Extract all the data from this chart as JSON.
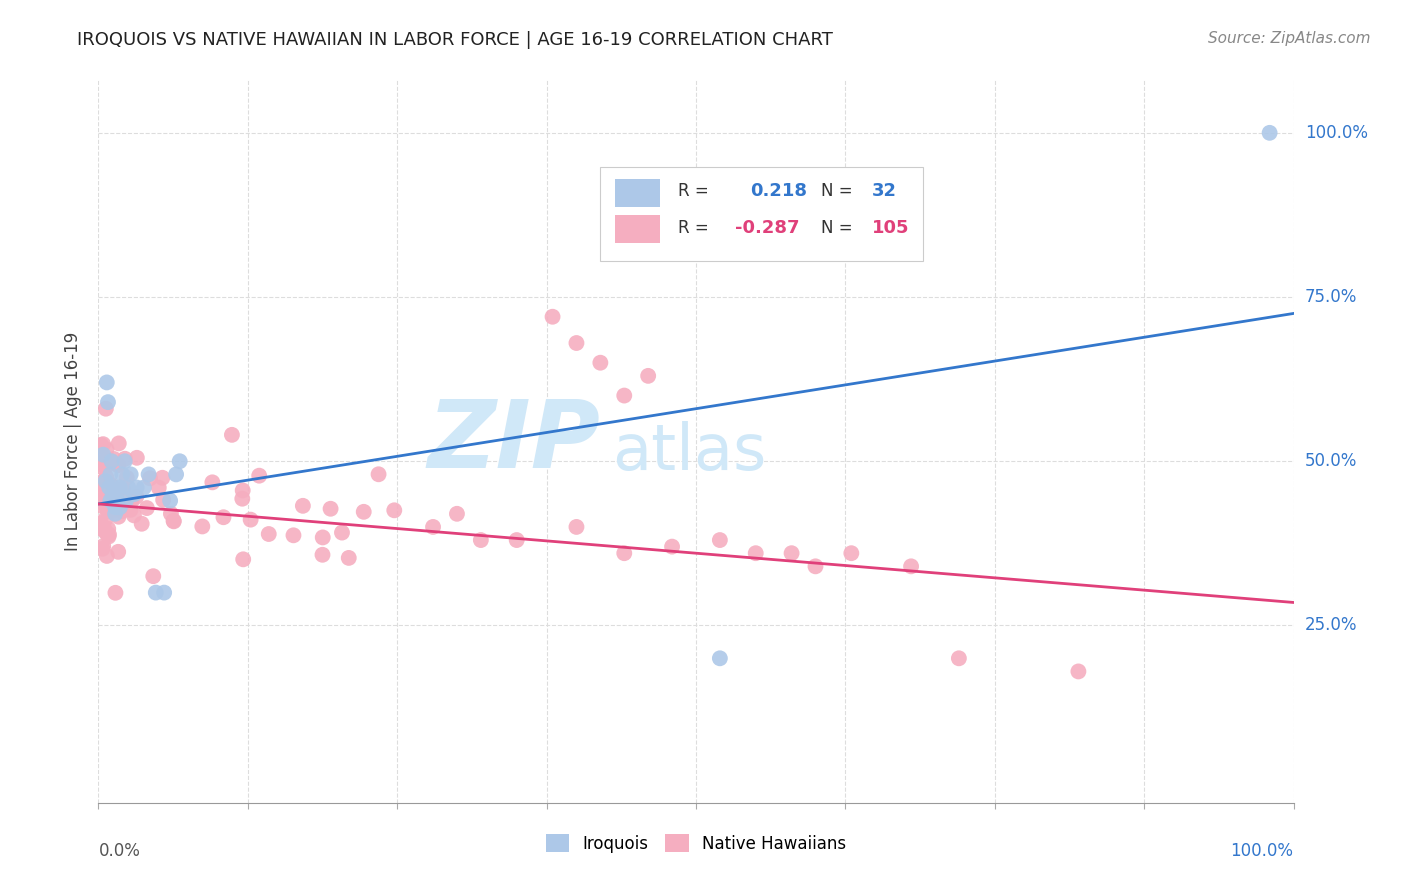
{
  "title": "IROQUOIS VS NATIVE HAWAIIAN IN LABOR FORCE | AGE 16-19 CORRELATION CHART",
  "source": "Source: ZipAtlas.com",
  "ylabel": "In Labor Force | Age 16-19",
  "xlim": [
    0.0,
    1.0
  ],
  "ylim": [
    -0.02,
    1.08
  ],
  "ytick_labels": [
    "25.0%",
    "50.0%",
    "75.0%",
    "100.0%"
  ],
  "ytick_values": [
    0.25,
    0.5,
    0.75,
    1.0
  ],
  "legend_r_iroquois": "0.218",
  "legend_n_iroquois": "32",
  "legend_r_hawaiian": "-0.287",
  "legend_n_hawaiian": "105",
  "iroquois_color": "#adc8e8",
  "hawaiian_color": "#f5aec0",
  "iroquois_line_color": "#3377cc",
  "hawaiian_line_color": "#e0407a",
  "legend_text_color": "#3377cc",
  "watermark_color": "#d0e8f8",
  "iroq_line_start_y": 0.435,
  "iroq_line_end_y": 0.725,
  "haw_line_start_y": 0.435,
  "haw_line_end_y": 0.285
}
